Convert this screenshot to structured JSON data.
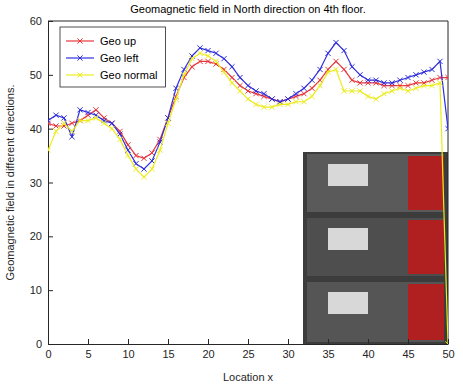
{
  "chart_data": {
    "type": "line",
    "title": "Geomagnetic field in North direction on 4th floor.",
    "x_label": "Location x",
    "y_label": "Geomagnetic field in different directions.",
    "x": [
      0,
      1,
      2,
      3,
      4,
      5,
      6,
      7,
      8,
      9,
      10,
      11,
      12,
      13,
      14,
      15,
      16,
      17,
      18,
      19,
      20,
      21,
      22,
      23,
      24,
      25,
      26,
      27,
      28,
      29,
      30,
      31,
      32,
      33,
      34,
      35,
      36,
      37,
      38,
      39,
      40,
      41,
      42,
      43,
      44,
      45,
      46,
      47,
      48,
      49,
      50
    ],
    "xlim": [
      0,
      50
    ],
    "ylim": [
      0,
      60
    ],
    "xticks": [
      0,
      5,
      10,
      15,
      20,
      25,
      30,
      35,
      40,
      45,
      50
    ],
    "yticks": [
      0,
      10,
      20,
      30,
      40,
      50,
      60
    ],
    "grid": false,
    "legend": "upper left",
    "series": [
      {
        "name": "Geo up",
        "color": "#e8363c",
        "marker": "x",
        "line_style": "solid",
        "values": [
          41,
          40.5,
          40.5,
          41,
          41.5,
          42.5,
          43.5,
          42,
          41,
          39.5,
          37,
          35,
          34.5,
          35.5,
          38,
          42,
          46,
          49.5,
          51.5,
          52.5,
          52.5,
          52,
          51,
          49.5,
          48,
          47,
          46.5,
          46,
          45.5,
          45,
          45.5,
          46,
          46.5,
          47.5,
          49,
          51,
          52.5,
          51,
          49,
          48.5,
          48.5,
          48.5,
          48,
          48,
          48,
          48,
          48.5,
          48.5,
          49,
          49.5,
          49.5
        ]
      },
      {
        "name": "Geo left",
        "color": "#2f2fe0",
        "marker": "x",
        "line_style": "solid",
        "values": [
          41.5,
          42.5,
          42,
          38.5,
          43.5,
          43,
          42.5,
          41.5,
          41,
          39,
          36,
          33.5,
          32.5,
          34,
          37.5,
          42,
          47.5,
          51,
          53.5,
          55,
          54.5,
          54,
          53,
          51.5,
          49.5,
          48,
          47,
          46.5,
          45.5,
          45,
          45.5,
          46.5,
          47.5,
          49,
          51,
          54,
          56,
          54.5,
          51.5,
          50,
          49,
          49,
          48.5,
          48.5,
          49,
          49.5,
          50,
          50.5,
          51,
          52.5,
          40
        ]
      },
      {
        "name": "Geo normal",
        "color": "#ecec1c",
        "marker": "x",
        "line_style": "solid",
        "values": [
          36,
          39.5,
          41,
          39.5,
          41.5,
          41.5,
          42,
          41,
          40,
          38,
          35,
          32.5,
          31,
          32.5,
          36,
          41,
          45.5,
          50,
          53,
          54,
          53.5,
          52.5,
          50.5,
          48.5,
          47,
          45.5,
          44.5,
          44,
          44,
          44.5,
          44.5,
          45,
          45,
          46,
          48,
          50.5,
          51,
          47,
          47,
          47,
          46,
          45.5,
          46.5,
          47,
          47.5,
          47,
          47.5,
          48,
          48,
          48.5,
          0
        ]
      }
    ]
  }
}
